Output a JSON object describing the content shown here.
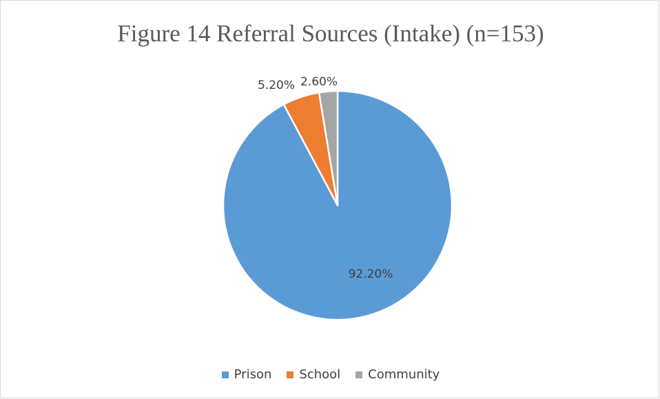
{
  "chart_data": {
    "type": "pie",
    "title": "Figure 14 Referral Sources (Intake) (n=153)",
    "categories": [
      "Prison",
      "School",
      "Community"
    ],
    "values": [
      92.2,
      5.2,
      2.6
    ],
    "value_labels": [
      "92.20%",
      "5.20%",
      "2.60%"
    ],
    "colors": [
      "#5b9bd5",
      "#ed7d31",
      "#a5a5a5"
    ],
    "legend_position": "bottom",
    "start_angle_deg": 0,
    "direction": "clockwise"
  }
}
